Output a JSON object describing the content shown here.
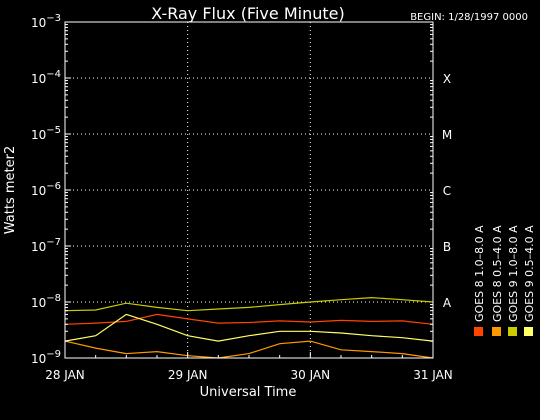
{
  "chart_data": {
    "type": "line",
    "title": "X-Ray Flux (Five Minute)",
    "begin_label": "BEGIN: 1/28/1997 0000",
    "xlabel": "Universal Time",
    "ylabel": "Watts meter2",
    "y_scale": "log",
    "ylim": [
      1e-09,
      0.001
    ],
    "xlim": [
      "1997-01-28",
      "1997-01-31"
    ],
    "grid": true,
    "legend_position": "right",
    "y_ticks": [
      {
        "value": 0.001,
        "base": "10",
        "exp": "−3"
      },
      {
        "value": 0.0001,
        "base": "10",
        "exp": "−4"
      },
      {
        "value": 1e-05,
        "base": "10",
        "exp": "−5"
      },
      {
        "value": 1e-06,
        "base": "10",
        "exp": "−6"
      },
      {
        "value": 1e-07,
        "base": "10",
        "exp": "−7"
      },
      {
        "value": 1e-08,
        "base": "10",
        "exp": "−8"
      },
      {
        "value": 1e-09,
        "base": "10",
        "exp": "−9"
      }
    ],
    "x_ticks": [
      {
        "value": "1997-01-28",
        "label": "28 JAN"
      },
      {
        "value": "1997-01-29",
        "label": "29 JAN"
      },
      {
        "value": "1997-01-30",
        "label": "30 JAN"
      },
      {
        "value": "1997-01-31",
        "label": "31 JAN"
      }
    ],
    "flare_classes": [
      {
        "label": "X",
        "value": 0.0001
      },
      {
        "label": "M",
        "value": 1e-05
      },
      {
        "label": "C",
        "value": 1e-06
      },
      {
        "label": "B",
        "value": 1e-07
      },
      {
        "label": "A",
        "value": 1e-08
      }
    ],
    "series": [
      {
        "name": "GOES 8 1.0–8.0 A",
        "color": "#ff4400",
        "x": [
          "1997-01-28 00:00",
          "1997-01-28 06:00",
          "1997-01-28 12:00",
          "1997-01-28 18:00",
          "1997-01-29 00:00",
          "1997-01-29 06:00",
          "1997-01-29 12:00",
          "1997-01-29 18:00",
          "1997-01-30 00:00",
          "1997-01-30 06:00",
          "1997-01-30 12:00",
          "1997-01-30 18:00",
          "1997-01-31 00:00"
        ],
        "values": [
          4e-09,
          4.2e-09,
          4.5e-09,
          6e-09,
          5e-09,
          4.2e-09,
          4.3e-09,
          4.6e-09,
          4.4e-09,
          4.7e-09,
          4.5e-09,
          4.6e-09,
          4e-09
        ]
      },
      {
        "name": "GOES 8 0.5–4.0 A",
        "color": "#ff9900",
        "x": [
          "1997-01-28 00:00",
          "1997-01-28 06:00",
          "1997-01-28 12:00",
          "1997-01-28 18:00",
          "1997-01-29 00:00",
          "1997-01-29 06:00",
          "1997-01-29 12:00",
          "1997-01-29 18:00",
          "1997-01-30 00:00",
          "1997-01-30 06:00",
          "1997-01-30 12:00",
          "1997-01-30 18:00",
          "1997-01-31 00:00"
        ],
        "values": [
          2e-09,
          1.5e-09,
          1.2e-09,
          1.3e-09,
          1.1e-09,
          1e-09,
          1.2e-09,
          1.8e-09,
          2e-09,
          1.4e-09,
          1.3e-09,
          1.2e-09,
          1e-09
        ]
      },
      {
        "name": "GOES 9 1.0–8.0 A",
        "color": "#cccc00",
        "x": [
          "1997-01-28 00:00",
          "1997-01-28 06:00",
          "1997-01-28 12:00",
          "1997-01-28 18:00",
          "1997-01-29 00:00",
          "1997-01-29 06:00",
          "1997-01-29 12:00",
          "1997-01-29 18:00",
          "1997-01-30 00:00",
          "1997-01-30 06:00",
          "1997-01-30 12:00",
          "1997-01-30 18:00",
          "1997-01-31 00:00"
        ],
        "values": [
          7e-09,
          7.2e-09,
          9.5e-09,
          8e-09,
          7e-09,
          7.5e-09,
          8e-09,
          9e-09,
          1e-08,
          1.1e-08,
          1.2e-08,
          1.1e-08,
          1e-08
        ]
      },
      {
        "name": "GOES 9 0.5–4.0 A",
        "color": "#ffff66",
        "x": [
          "1997-01-28 00:00",
          "1997-01-28 06:00",
          "1997-01-28 12:00",
          "1997-01-28 18:00",
          "1997-01-29 00:00",
          "1997-01-29 06:00",
          "1997-01-29 12:00",
          "1997-01-29 18:00",
          "1997-01-30 00:00",
          "1997-01-30 06:00",
          "1997-01-30 12:00",
          "1997-01-30 18:00",
          "1997-01-31 00:00"
        ],
        "values": [
          2e-09,
          2.5e-09,
          6e-09,
          4e-09,
          2.5e-09,
          2e-09,
          2.5e-09,
          3e-09,
          3e-09,
          2.8e-09,
          2.5e-09,
          2.3e-09,
          2e-09
        ]
      }
    ]
  }
}
